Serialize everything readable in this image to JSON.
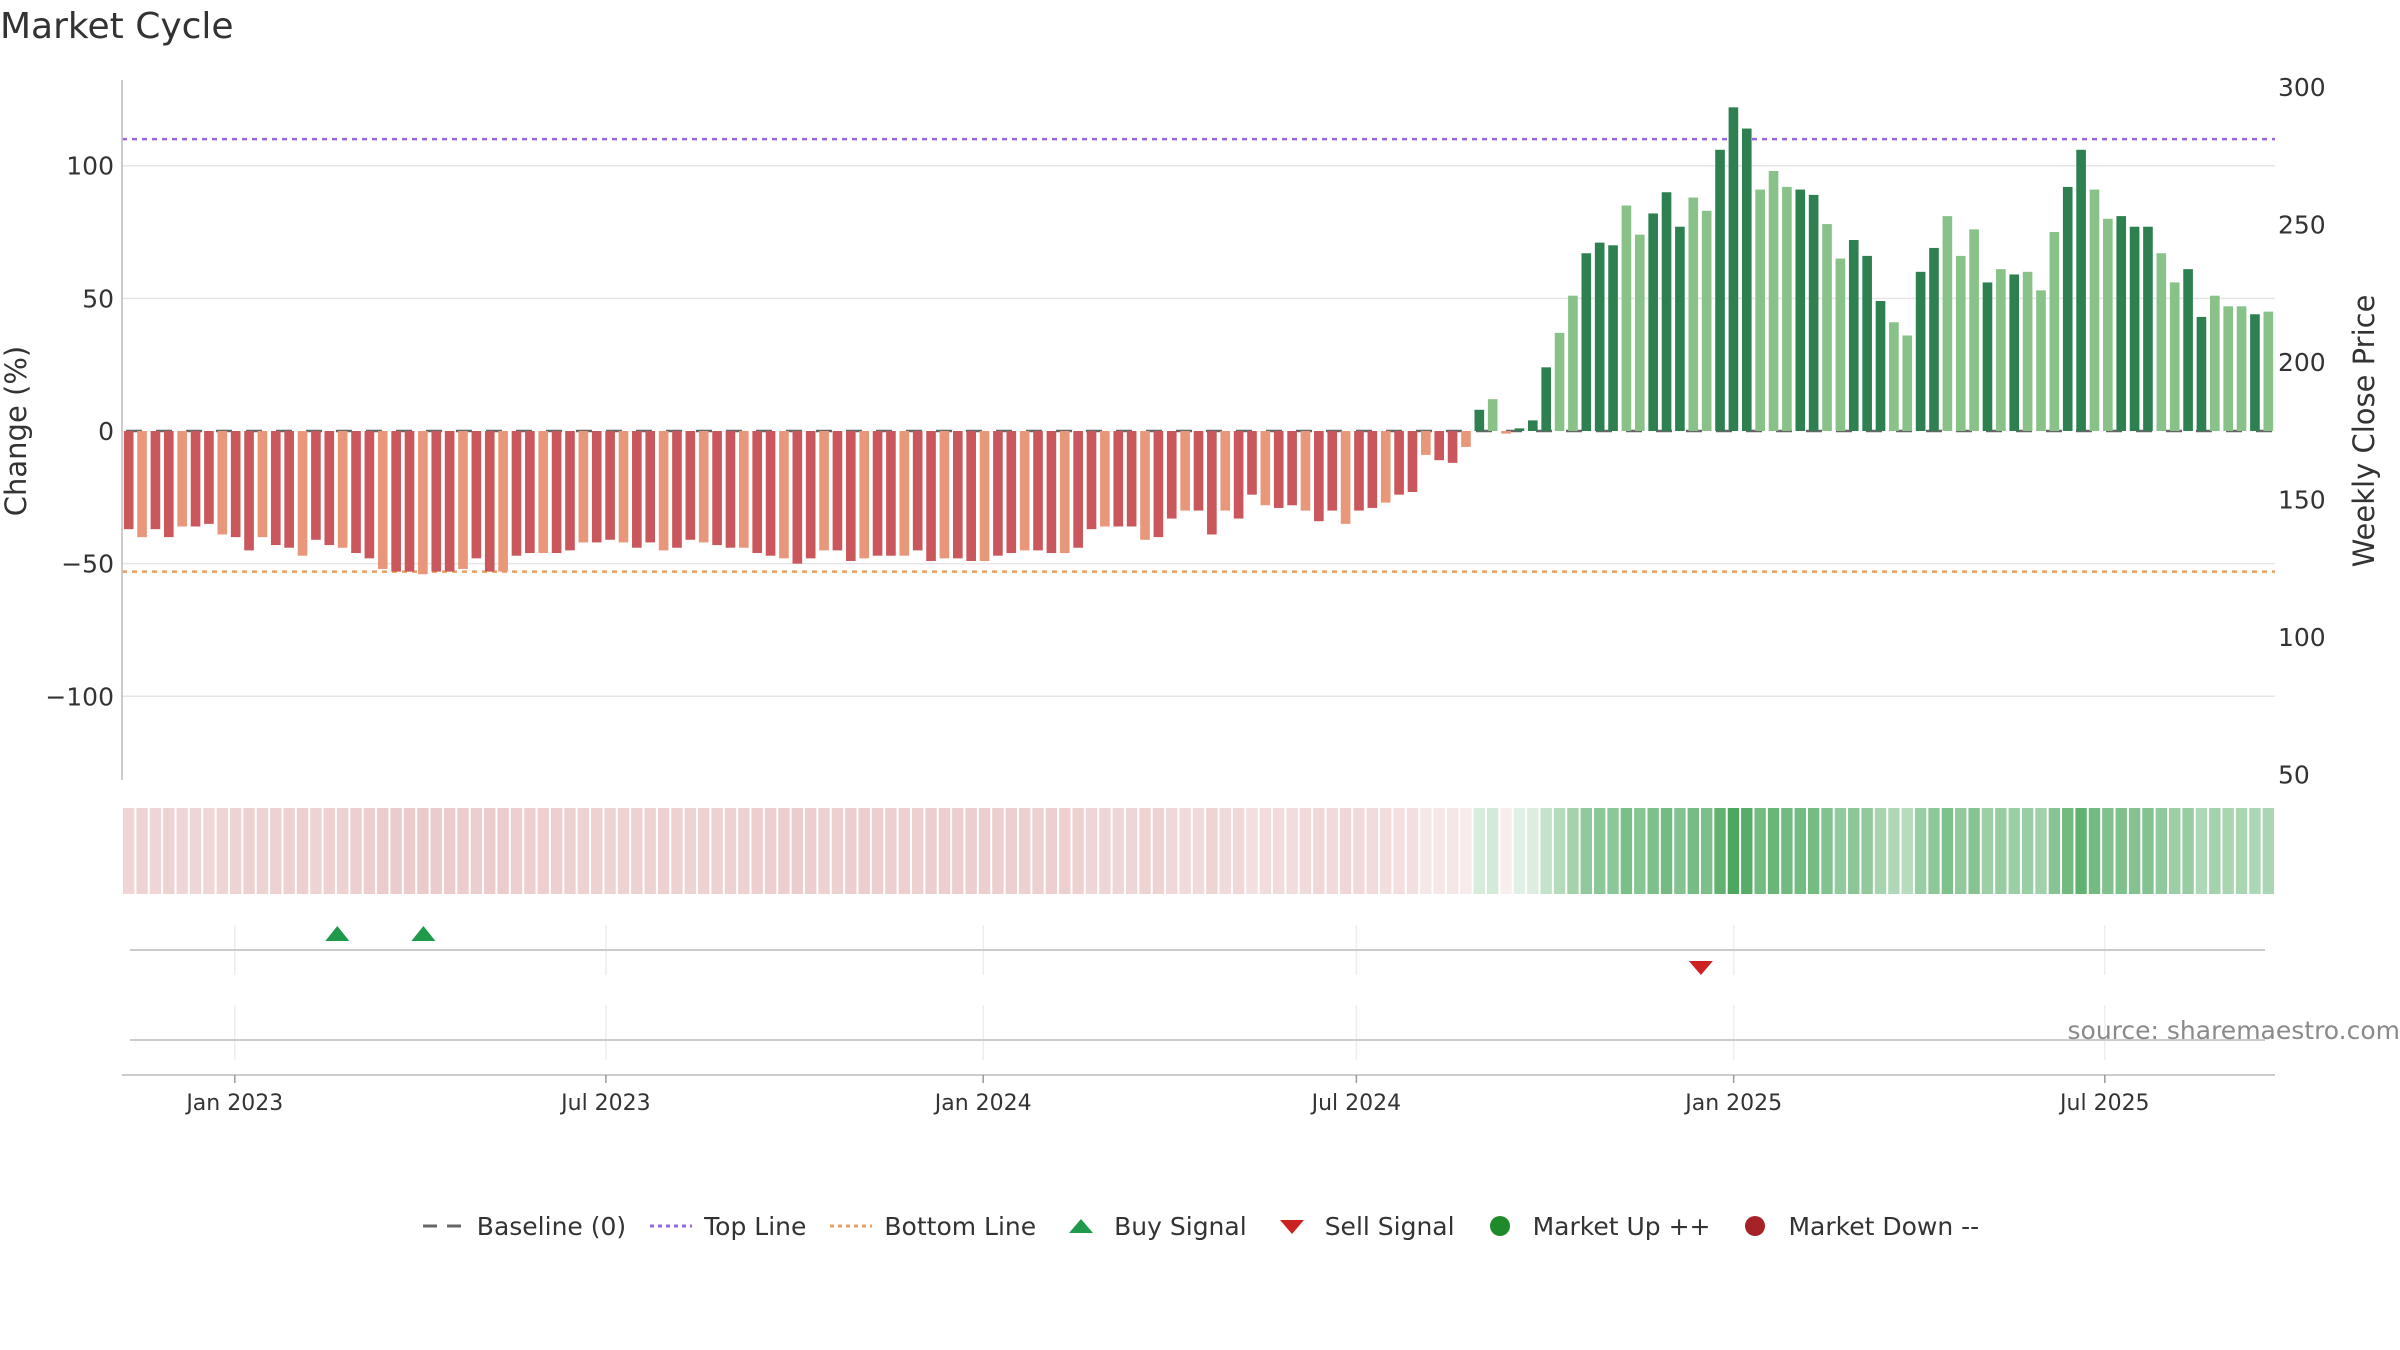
{
  "title": "Market Cycle",
  "source": "source: sharemaestro.com",
  "legend": [
    {
      "label": "Baseline (0)",
      "symbol": "dash",
      "color": "#666666"
    },
    {
      "label": "Top Line",
      "symbol": "dot-line",
      "color": "#9966dd"
    },
    {
      "label": "Bottom Line",
      "symbol": "dot-line",
      "color": "#e8a060"
    },
    {
      "label": "Buy Signal",
      "symbol": "triangle-up",
      "color": "#1e9a4a"
    },
    {
      "label": "Sell Signal",
      "symbol": "triangle-down",
      "color": "#cc2222"
    },
    {
      "label": "Market Up ++",
      "symbol": "circle",
      "color": "#1e8a2a"
    },
    {
      "label": "Market Down --",
      "symbol": "circle",
      "color": "#a52226"
    }
  ],
  "chart_data": {
    "type": "bar",
    "ylabel": "Change (%)",
    "y2label": "Weekly Close Price",
    "ylim": [
      -132,
      132
    ],
    "y_ticks": [
      100,
      50,
      0,
      -50,
      -100
    ],
    "y_tick_labels": [
      "100",
      "50",
      "0",
      "−50",
      "−100"
    ],
    "y2lim": [
      50,
      300
    ],
    "y2_ticks": [
      300,
      250,
      200,
      150,
      100,
      50
    ],
    "y2_tick_labels": [
      "300",
      "250",
      "200",
      "150",
      "100",
      "50"
    ],
    "top_line": 110,
    "bottom_line": -53,
    "baseline": 0,
    "x_start": "2022-11-07",
    "x_end": "2025-09-22",
    "x_ticks": [
      {
        "date": "2023-01-01",
        "label": "Jan 2023"
      },
      {
        "date": "2023-07-01",
        "label": "Jul 2023"
      },
      {
        "date": "2024-01-01",
        "label": "Jan 2024"
      },
      {
        "date": "2024-07-01",
        "label": "Jul 2024"
      },
      {
        "date": "2025-01-01",
        "label": "Jan 2025"
      },
      {
        "date": "2025-07-01",
        "label": "Jul 2025"
      }
    ],
    "colors": {
      "strong_down": "#c9575b",
      "weak_down": "#e8977a",
      "strong_up": "#2e8050",
      "weak_up": "#88c288"
    },
    "values": [
      -37,
      -40,
      -37,
      -40,
      -36,
      -36,
      -35,
      -39,
      -40,
      -45,
      -40,
      -43,
      -44,
      -47,
      -41,
      -43,
      -44,
      -46,
      -48,
      -52,
      -53,
      -53,
      -54,
      -53,
      -53,
      -52,
      -48,
      -53,
      -53,
      -47,
      -46,
      -46,
      -46,
      -45,
      -42,
      -42,
      -41,
      -42,
      -44,
      -42,
      -45,
      -44,
      -41,
      -42,
      -43,
      -44,
      -44,
      -46,
      -47,
      -48,
      -50,
      -48,
      -45,
      -45,
      -49,
      -48,
      -47,
      -47,
      -47,
      -45,
      -49,
      -48,
      -48,
      -49,
      -49,
      -47,
      -46,
      -45,
      -45,
      -46,
      -46,
      -44,
      -37,
      -36,
      -36,
      -36,
      -41,
      -40,
      -33,
      -30,
      -30,
      -39,
      -30,
      -33,
      -24,
      -28,
      -29,
      -28,
      -30,
      -34,
      -30,
      -35,
      -30,
      -29,
      -27,
      -24,
      -23,
      -9,
      -11,
      -12,
      -6,
      8,
      12,
      -1,
      1,
      4,
      24,
      37,
      51,
      67,
      71,
      70,
      85,
      74,
      82,
      90,
      77,
      88,
      83,
      106,
      122,
      114,
      91,
      98,
      92,
      91,
      89,
      78,
      65,
      72,
      66,
      49,
      41,
      36,
      60,
      69,
      81,
      66,
      76,
      56,
      61,
      59,
      60,
      53,
      75,
      92,
      106,
      91,
      80,
      81,
      77,
      77,
      67,
      56,
      61,
      43,
      51,
      47,
      47,
      44,
      45
    ],
    "signal_bar_values": [
      -37,
      -40,
      -37,
      -40,
      -36,
      -36,
      -35,
      -39,
      -40,
      -45,
      -40,
      -43,
      -44,
      -47,
      -41,
      -43,
      -44,
      -46,
      -48,
      -52,
      -53,
      -53,
      -54,
      -53,
      -53,
      -52,
      -48,
      -53,
      -53,
      -47,
      -46,
      -46,
      -46,
      -45,
      -42,
      -42,
      -41,
      -42,
      -44,
      -42,
      -45,
      -44,
      -41,
      -42,
      -43,
      -44,
      -44,
      -46,
      -47,
      -48,
      -50,
      -48,
      -45,
      -45,
      -49,
      -48,
      -47,
      -47,
      -47,
      -45,
      -49,
      -48,
      -48,
      -49,
      -49,
      -47,
      -46,
      -45,
      -45,
      -46,
      -46,
      -44,
      -37,
      -36,
      -36,
      -36,
      -41,
      -40,
      -33,
      -30,
      -30,
      -39,
      -30,
      -33,
      -24,
      -28,
      -29,
      -28,
      -30,
      -34,
      -30,
      -35,
      -30,
      -29,
      -27,
      -24,
      -23,
      -9,
      -11,
      -12,
      -6,
      8,
      12,
      -1,
      1,
      4,
      24,
      37,
      51,
      67,
      71,
      70,
      85,
      74,
      82,
      90,
      77,
      88,
      83,
      106,
      122,
      114,
      91,
      98,
      92,
      91,
      89,
      78,
      65,
      72,
      66,
      49,
      41,
      36,
      60,
      69,
      81,
      66,
      76,
      56,
      61,
      59,
      60,
      53,
      75,
      92,
      106,
      91,
      80,
      81,
      77,
      77,
      67,
      56,
      61,
      43,
      51,
      47,
      47,
      44,
      45
    ],
    "buy_signals": [
      "2023-02-20",
      "2023-04-03"
    ],
    "sell_signals": [
      "2024-12-16"
    ]
  }
}
